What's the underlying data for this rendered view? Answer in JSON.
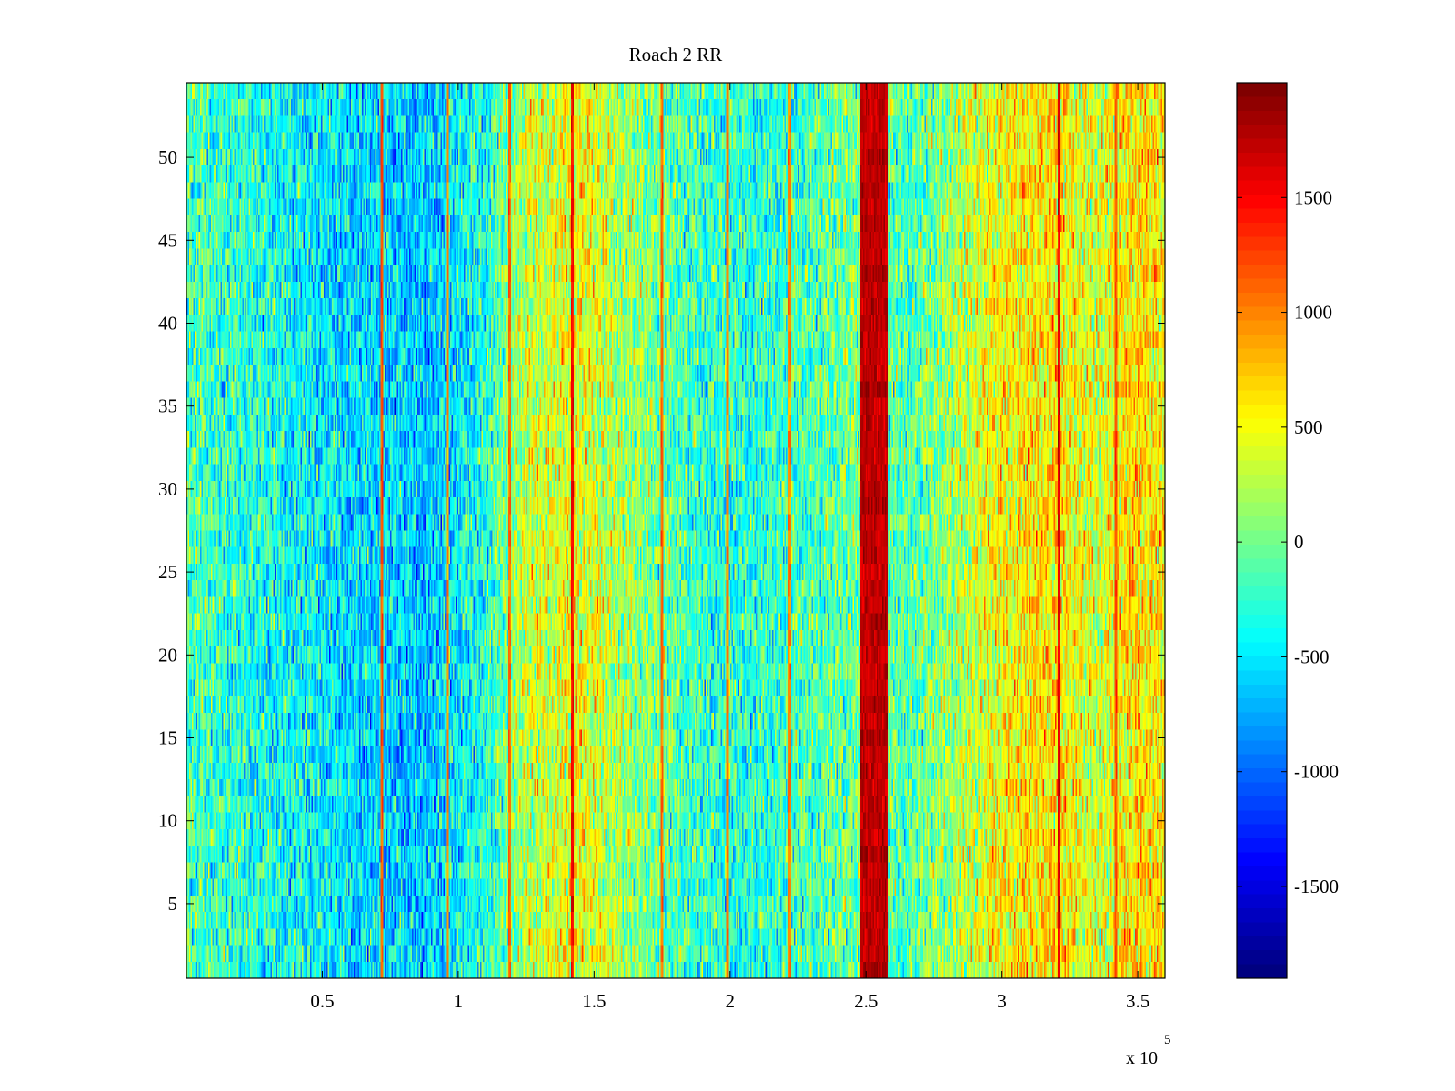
{
  "chart_data": {
    "type": "heatmap",
    "title": "Roach 2 RR",
    "xlabel": "",
    "ylabel": "",
    "x_multiplier_label": "x 10",
    "x_multiplier_exponent": "5",
    "x_range": [
      0,
      3.6
    ],
    "y_range": [
      0.5,
      54.5
    ],
    "n_rows": 54,
    "n_cols": 720,
    "xticks": [
      {
        "value": 0.5,
        "label": "0.5"
      },
      {
        "value": 1,
        "label": "1"
      },
      {
        "value": 1.5,
        "label": "1.5"
      },
      {
        "value": 2,
        "label": "2"
      },
      {
        "value": 2.5,
        "label": "2.5"
      },
      {
        "value": 3,
        "label": "3"
      },
      {
        "value": 3.5,
        "label": "3.5"
      }
    ],
    "yticks": [
      {
        "value": 5,
        "label": "5"
      },
      {
        "value": 10,
        "label": "10"
      },
      {
        "value": 15,
        "label": "15"
      },
      {
        "value": 20,
        "label": "20"
      },
      {
        "value": 25,
        "label": "25"
      },
      {
        "value": 30,
        "label": "30"
      },
      {
        "value": 35,
        "label": "35"
      },
      {
        "value": 40,
        "label": "40"
      },
      {
        "value": 45,
        "label": "45"
      },
      {
        "value": 50,
        "label": "50"
      }
    ],
    "colorbar": {
      "colormap": "jet",
      "clim": [
        -1900,
        2000
      ],
      "ticks": [
        {
          "value": -1500,
          "label": "-1500"
        },
        {
          "value": -1000,
          "label": "-1000"
        },
        {
          "value": -500,
          "label": "-500"
        },
        {
          "value": 0,
          "label": "0"
        },
        {
          "value": 500,
          "label": "500"
        },
        {
          "value": 1000,
          "label": "1000"
        },
        {
          "value": 1500,
          "label": "1500"
        }
      ]
    },
    "baseline_profile": [
      {
        "x": 0.0,
        "v": -150
      },
      {
        "x": 0.3,
        "v": -350
      },
      {
        "x": 0.6,
        "v": -550
      },
      {
        "x": 0.9,
        "v": -650
      },
      {
        "x": 1.1,
        "v": -300
      },
      {
        "x": 1.25,
        "v": 300
      },
      {
        "x": 1.45,
        "v": 500
      },
      {
        "x": 1.6,
        "v": 200
      },
      {
        "x": 1.9,
        "v": -250
      },
      {
        "x": 2.1,
        "v": -300
      },
      {
        "x": 2.35,
        "v": -100
      },
      {
        "x": 2.45,
        "v": 0
      },
      {
        "x": 2.65,
        "v": -150
      },
      {
        "x": 2.85,
        "v": 250
      },
      {
        "x": 3.0,
        "v": 550
      },
      {
        "x": 3.2,
        "v": 650
      },
      {
        "x": 3.35,
        "v": 350
      },
      {
        "x": 3.5,
        "v": 700
      },
      {
        "x": 3.6,
        "v": 550
      }
    ],
    "vertical_lines": [
      {
        "x": 0.72,
        "value": 1200
      },
      {
        "x": 0.96,
        "value": 1000
      },
      {
        "x": 1.19,
        "value": 1100
      },
      {
        "x": 1.42,
        "value": 1500
      },
      {
        "x": 1.75,
        "value": 1100
      },
      {
        "x": 1.99,
        "value": 1000
      },
      {
        "x": 2.22,
        "value": 1000
      },
      {
        "x": 3.21,
        "value": 1600
      },
      {
        "x": 3.42,
        "value": 1200
      }
    ],
    "hot_band": {
      "x_start": 2.48,
      "x_end": 2.58,
      "value": 1750
    }
  }
}
